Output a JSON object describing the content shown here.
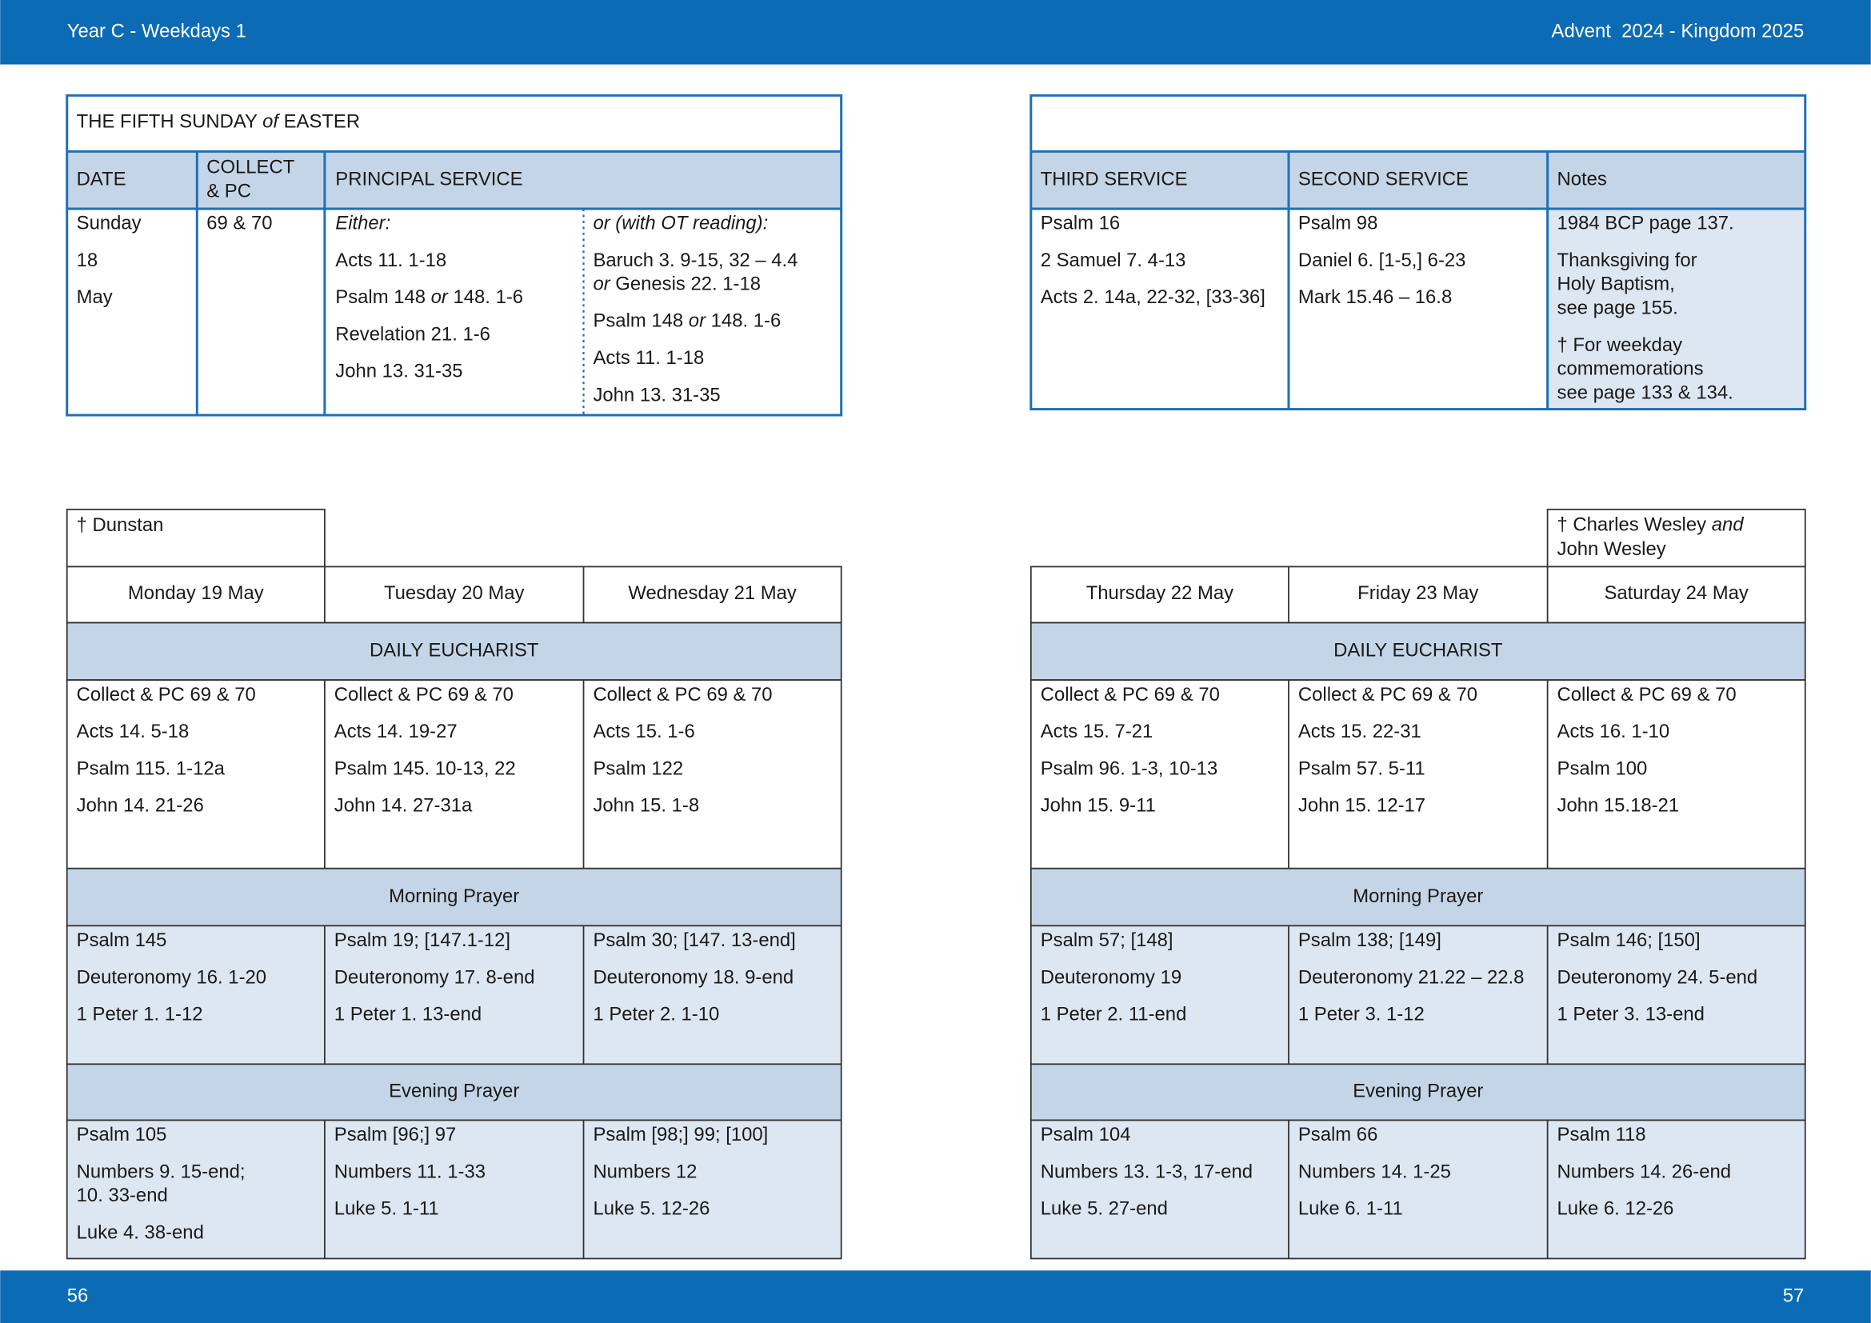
{
  "header": {
    "left": "Year C - Weekdays 1",
    "right": "Advent  2024 - Kingdom 2025"
  },
  "footer": {
    "left_page": "56",
    "right_page": "57"
  },
  "sunday": {
    "title": [
      "THE FIFTH SUNDAY ",
      {
        "italic": "of"
      },
      " EASTER"
    ],
    "left_headers": [
      "DATE",
      {
        "wrap": [
          "COLLECT",
          "& PC"
        ]
      },
      "PRINCIPAL SERVICE"
    ],
    "date": [
      "Sunday",
      "18",
      "May"
    ],
    "collect": [
      "69 & 70"
    ],
    "principal_either": [
      [
        {
          "italic": "Either:"
        }
      ],
      "Acts 11. 1-18",
      [
        "Psalm 148 ",
        {
          "italic": "or"
        },
        " 148. 1-6"
      ],
      "Revelation 21. 1-6",
      "John 13. 31-35"
    ],
    "principal_or": [
      [
        {
          "italic": "or (with OT reading):"
        }
      ],
      {
        "wrap": [
          "Baruch 3. 9-15, 32 – 4.4",
          [
            {
              "italic": "or"
            },
            " Genesis 22. 1-18"
          ]
        ]
      },
      [
        "Psalm 148 ",
        {
          "italic": "or"
        },
        " 148. 1-6"
      ],
      "Acts 11. 1-18",
      "John 13. 31-35"
    ],
    "right_headers": [
      "THIRD SERVICE",
      "SECOND SERVICE",
      "Notes"
    ],
    "third": [
      "Psalm 16",
      "2 Samuel 7. 4-13",
      "Acts 2. 14a, 22-32, [33-36]"
    ],
    "second": [
      "Psalm 98",
      "Daniel 6. [1-5,] 6-23",
      "Mark 15.46 – 16.8"
    ],
    "notes": [
      "1984 BCP page 137.",
      {
        "wrap": [
          "Thanksgiving for",
          "Holy Baptism,",
          "see page 155."
        ]
      },
      {
        "wrap": [
          "† For weekday",
          "commemorations",
          "see page 133 & 134."
        ]
      }
    ]
  },
  "weekdays": [
    {
      "note": "† Dunstan",
      "days": [
        "Monday 19 May",
        "Tuesday 20 May",
        "Wednesday 21 May"
      ],
      "sections": [
        {
          "title": "DAILY EUCHARIST",
          "cells": [
            [
              "Collect & PC 69 & 70",
              "Acts 14. 5-18",
              "Psalm 115. 1-12a",
              "John 14. 21-26"
            ],
            [
              "Collect & PC 69 & 70",
              "Acts 14. 19-27",
              "Psalm 145. 10-13, 22",
              "John 14. 27-31a"
            ],
            [
              "Collect & PC 69 & 70",
              "Acts 15. 1-6",
              "Psalm 122",
              "John 15. 1-8"
            ]
          ]
        },
        {
          "title": "Morning Prayer",
          "cells": [
            [
              "Psalm 145",
              "Deuteronomy 16. 1-20",
              "1 Peter 1. 1-12"
            ],
            [
              "Psalm 19; [147.1-12]",
              "Deuteronomy 17. 8-end",
              "1 Peter 1. 13-end"
            ],
            [
              "Psalm 30; [147. 13-end]",
              "Deuteronomy 18. 9-end",
              "1 Peter 2. 1-10"
            ]
          ]
        },
        {
          "title": "Evening Prayer",
          "cells": [
            [
              "Psalm 105",
              {
                "wrap": [
                  "Numbers 9. 15-end;",
                  "10. 33-end"
                ]
              },
              "Luke 4. 38-end"
            ],
            [
              "Psalm [96;] 97",
              "Numbers 11. 1-33",
              "Luke 5. 1-11"
            ],
            [
              "Psalm [98;] 99; [100]",
              "Numbers 12",
              "Luke 5. 12-26"
            ]
          ]
        }
      ]
    },
    {
      "note": {
        "wrap": [
          [
            "† Charles Wesley ",
            {
              "italic": "and"
            }
          ],
          "John Wesley"
        ]
      },
      "days": [
        "Thursday 22 May",
        "Friday 23 May",
        "Saturday 24 May"
      ],
      "sections": [
        {
          "title": "DAILY EUCHARIST",
          "cells": [
            [
              "Collect & PC 69 & 70",
              "Acts 15. 7-21",
              "Psalm 96. 1-3, 10-13",
              "John 15. 9-11"
            ],
            [
              "Collect & PC 69 & 70",
              "Acts 15. 22-31",
              "Psalm 57. 5-11",
              "John 15. 12-17"
            ],
            [
              "Collect & PC 69 & 70",
              "Acts 16. 1-10",
              "Psalm 100",
              "John 15.18-21"
            ]
          ]
        },
        {
          "title": "Morning Prayer",
          "cells": [
            [
              "Psalm 57; [148]",
              "Deuteronomy 19",
              "1 Peter 2. 11-end"
            ],
            [
              "Psalm 138; [149]",
              "Deuteronomy 21.22 – 22.8",
              "1 Peter 3. 1-12"
            ],
            [
              "Psalm 146; [150]",
              "Deuteronomy 24. 5-end",
              "1 Peter 3. 13-end"
            ]
          ]
        },
        {
          "title": "Evening Prayer",
          "cells": [
            [
              "Psalm 104",
              "Numbers 13. 1-3, 17-end",
              "Luke 5. 27-end"
            ],
            [
              "Psalm 66",
              "Numbers 14. 1-25",
              "Luke 6. 1-11"
            ],
            [
              "Psalm 118",
              "Numbers 14. 26-end",
              "Luke 6. 12-26"
            ]
          ]
        }
      ]
    }
  ]
}
